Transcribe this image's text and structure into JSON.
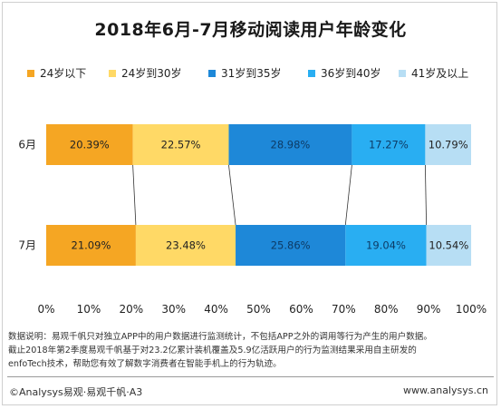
{
  "chart_data": {
    "type": "bar",
    "orientation": "horizontal",
    "stacked": true,
    "percent": true,
    "title": "2018年6月-7月移动阅读用户年龄变化",
    "categories": [
      "6月",
      "7月"
    ],
    "series": [
      {
        "name": "24岁以下",
        "color": "#f5a623",
        "values": [
          20.39,
          21.09
        ],
        "labels": [
          "20.39%",
          "21.09%"
        ]
      },
      {
        "name": "24岁到30岁",
        "color": "#ffd966",
        "values": [
          22.57,
          23.48
        ],
        "labels": [
          "22.57%",
          "23.48%"
        ]
      },
      {
        "name": "31岁到35岁",
        "color": "#1e88d8",
        "values": [
          28.98,
          25.86
        ],
        "labels": [
          "28.98%",
          "25.86%"
        ]
      },
      {
        "name": "36岁到40岁",
        "color": "#29aef2",
        "values": [
          17.27,
          19.04
        ],
        "labels": [
          "17.27%",
          "19.04%"
        ]
      },
      {
        "name": "41岁及以上",
        "color": "#b7def4",
        "values": [
          10.79,
          10.54
        ],
        "labels": [
          "10.79%",
          "10.54%"
        ]
      }
    ],
    "xlim": [
      0,
      100
    ],
    "xticks": [
      "0%",
      "10%",
      "20%",
      "30%",
      "40%",
      "50%",
      "60%",
      "70%",
      "80%",
      "90%",
      "100%"
    ],
    "legend_position": "top",
    "grid": false
  },
  "notes": {
    "line1": "数据说明：易观千帆只对独立APP中的用户数据进行监测统计，不包括APP之外的调用等行为产生的用户数据。",
    "line2": "截止2018年第2季度易观千帆基于对23.2亿累计装机覆盖及5.9亿活跃用户的行为监测结果采用自主研发的",
    "line3": "enfoTech技术，帮助您有效了解数字消费者在智能手机上的行为轨迹。"
  },
  "footer": {
    "left": "©Analysys易观·易观千帆·A3",
    "right": "www.analysys.cn"
  }
}
